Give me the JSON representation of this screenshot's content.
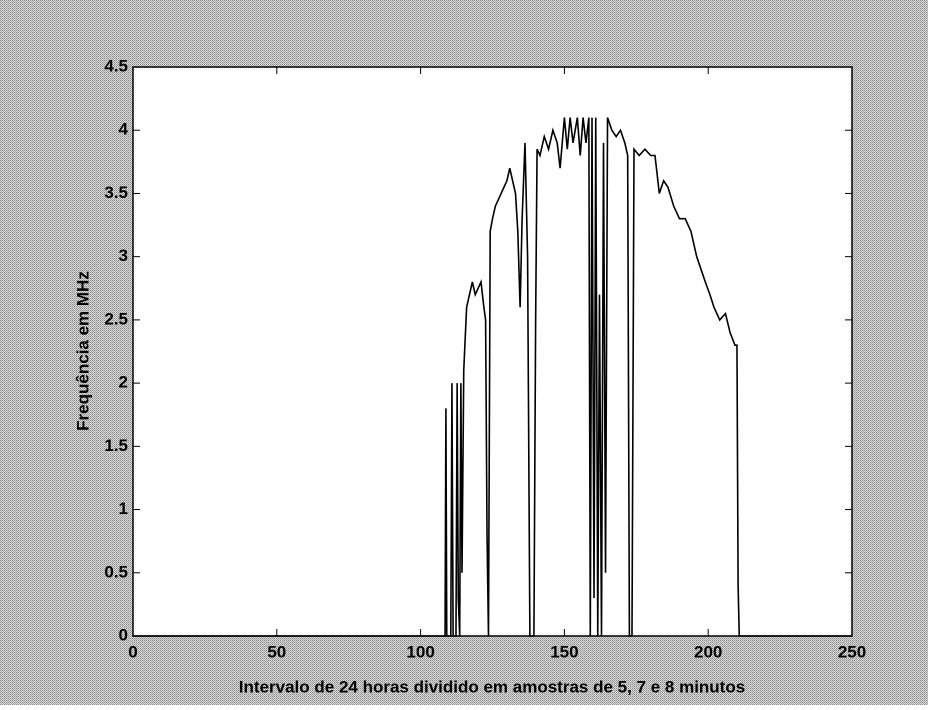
{
  "chart_data": {
    "type": "line",
    "xlabel": "Intervalo de 24 horas dividido em amostras de 5, 7 e 8 minutos",
    "ylabel": "Frequência em MHz",
    "xlim": [
      0,
      250
    ],
    "xticks": [
      0,
      50,
      100,
      150,
      200,
      250
    ],
    "ylim": [
      0,
      4.5
    ],
    "yticks": [
      0,
      0.5,
      1,
      1.5,
      2,
      2.5,
      3,
      3.5,
      4,
      4.5
    ],
    "series": [
      {
        "color": "#000000",
        "x": [
          0,
          108.5,
          108.8,
          109.1,
          110.5,
          110.9,
          111.3,
          112.3,
          112.7,
          113.1,
          113.6,
          114,
          114.4,
          115,
          116,
          117,
          118,
          119,
          120,
          121,
          122,
          122.6,
          123.1,
          123.6,
          124.2,
          125,
          126,
          127,
          128,
          129,
          130,
          131,
          132,
          133,
          133.8,
          134.6,
          135.3,
          136.3,
          137.2,
          138,
          138.8,
          139.4,
          140,
          140.5,
          141.5,
          143,
          144.5,
          146,
          147.5,
          148.5,
          150,
          151,
          152,
          153,
          154.5,
          155.5,
          156.5,
          157.5,
          158.5,
          159,
          159.6,
          160.3,
          160.9,
          161.6,
          162.2,
          162.9,
          163.6,
          164.3,
          165,
          166.5,
          168,
          169.5,
          171,
          172,
          172.6,
          173.5,
          174.2,
          176,
          178,
          180,
          181.5,
          183,
          184.5,
          186,
          188,
          190,
          192,
          194,
          196,
          197.5,
          199,
          200.6,
          202,
          204,
          206,
          207.6,
          209.3,
          210,
          210.4,
          210.8,
          250
        ],
        "values": [
          0,
          0,
          1.8,
          0,
          0,
          2.0,
          0,
          0,
          2.0,
          0.3,
          0,
          2.0,
          0.5,
          2.1,
          2.6,
          2.7,
          2.8,
          2.7,
          2.75,
          2.8,
          2.6,
          2.5,
          0.8,
          0,
          3.2,
          3.3,
          3.4,
          3.45,
          3.5,
          3.55,
          3.6,
          3.7,
          3.6,
          3.5,
          3.2,
          2.6,
          3.3,
          3.9,
          3.0,
          0,
          0,
          0,
          2.5,
          3.85,
          3.8,
          3.95,
          3.85,
          4.0,
          3.9,
          3.7,
          4.1,
          3.85,
          4.1,
          3.9,
          4.1,
          3.8,
          4.1,
          3.9,
          4.1,
          0,
          4.1,
          0.3,
          4.1,
          0,
          2.7,
          0,
          3.9,
          0.5,
          4.1,
          4.0,
          3.95,
          4.0,
          3.9,
          3.8,
          0,
          0,
          3.85,
          3.8,
          3.85,
          3.8,
          3.8,
          3.5,
          3.6,
          3.55,
          3.4,
          3.3,
          3.3,
          3.2,
          3.0,
          2.9,
          2.8,
          2.7,
          2.6,
          2.5,
          2.55,
          2.4,
          2.3,
          2.3,
          0.4,
          0,
          0
        ]
      }
    ]
  }
}
